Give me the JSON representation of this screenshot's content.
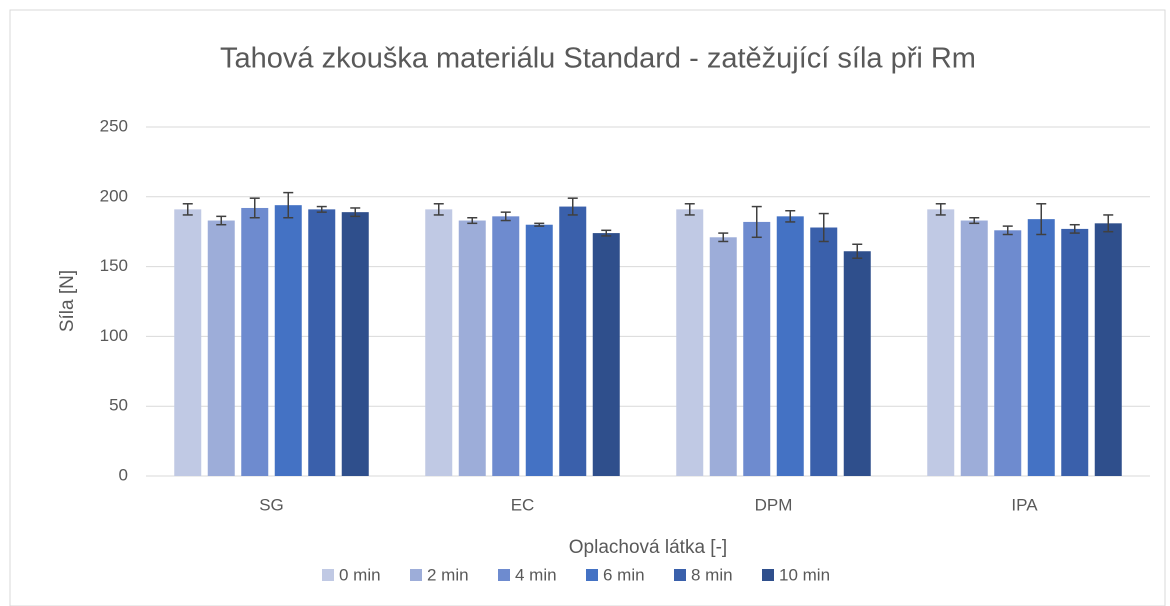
{
  "chart_data": {
    "type": "bar",
    "title": "Tahová zkouška materiálu Standard - zatěžující síla při Rm",
    "x_label": "Oplachová látka [-]",
    "y_label": "Síla [N]",
    "categories": [
      "SG",
      "EC",
      "DPM",
      "IPA"
    ],
    "series": [
      {
        "name": "0 min",
        "color": "#c0c9e4",
        "values": [
          191,
          191,
          191,
          191
        ],
        "errors": [
          4,
          4,
          4,
          4
        ]
      },
      {
        "name": "2 min",
        "color": "#9dadd9",
        "values": [
          183,
          183,
          171,
          183
        ],
        "errors": [
          3,
          2,
          3,
          2
        ]
      },
      {
        "name": "4 min",
        "color": "#6e8bcf",
        "values": [
          192,
          186,
          182,
          176
        ],
        "errors": [
          7,
          3,
          11,
          3
        ]
      },
      {
        "name": "6 min",
        "color": "#4472c4",
        "values": [
          194,
          180,
          186,
          184
        ],
        "errors": [
          9,
          1,
          4,
          11
        ]
      },
      {
        "name": "8 min",
        "color": "#3a60ab",
        "values": [
          191,
          193,
          178,
          177
        ],
        "errors": [
          2,
          6,
          10,
          3
        ]
      },
      {
        "name": "10 min",
        "color": "#2f4f8c",
        "values": [
          189,
          174,
          161,
          181
        ],
        "errors": [
          3,
          2,
          5,
          6
        ]
      }
    ],
    "ylim": [
      0,
      250
    ],
    "yticks": [
      0,
      50,
      100,
      150,
      200,
      250
    ],
    "grid": true,
    "legend": "bottom"
  }
}
